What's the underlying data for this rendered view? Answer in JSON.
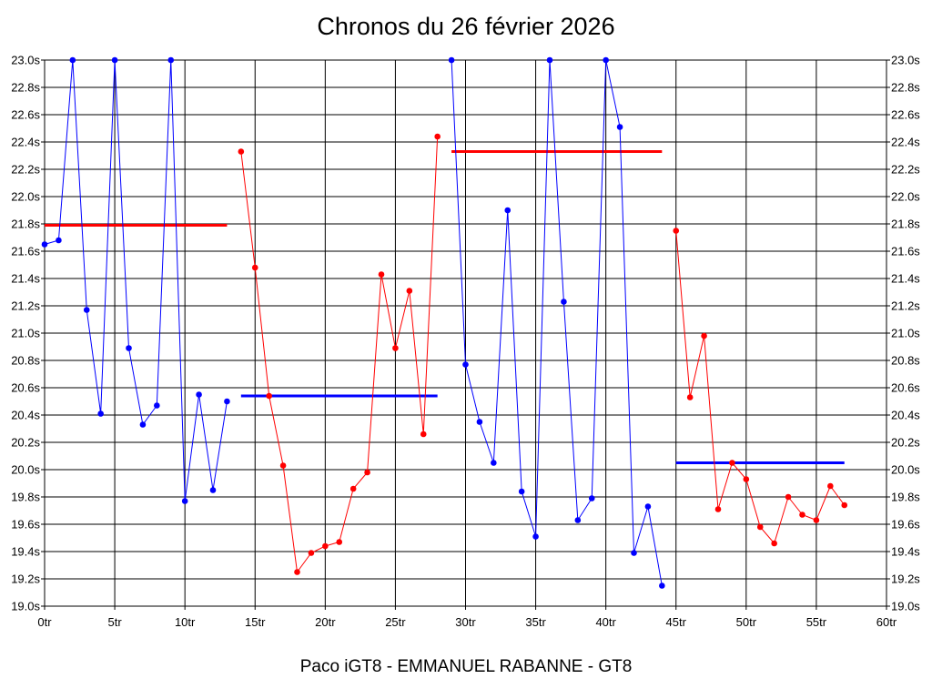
{
  "chart_data": {
    "type": "line",
    "title": "Chronos du 26 février 2026",
    "subtitle": "Paco iGT8 - EMMANUEL RABANNE - GT8",
    "xlim": [
      0,
      60
    ],
    "ylim": [
      19.0,
      23.0
    ],
    "x_ticks": [
      {
        "value": 0,
        "label": "0tr"
      },
      {
        "value": 5,
        "label": "5tr"
      },
      {
        "value": 10,
        "label": "10tr"
      },
      {
        "value": 15,
        "label": "15tr"
      },
      {
        "value": 20,
        "label": "20tr"
      },
      {
        "value": 25,
        "label": "25tr"
      },
      {
        "value": 30,
        "label": "30tr"
      },
      {
        "value": 35,
        "label": "35tr"
      },
      {
        "value": 40,
        "label": "40tr"
      },
      {
        "value": 45,
        "label": "45tr"
      },
      {
        "value": 50,
        "label": "50tr"
      },
      {
        "value": 55,
        "label": "55tr"
      },
      {
        "value": 60,
        "label": "60tr"
      }
    ],
    "y_ticks": [
      {
        "value": 19.0,
        "label": "19.0s"
      },
      {
        "value": 19.2,
        "label": "19.2s"
      },
      {
        "value": 19.4,
        "label": "19.4s"
      },
      {
        "value": 19.6,
        "label": "19.6s"
      },
      {
        "value": 19.8,
        "label": "19.8s"
      },
      {
        "value": 20.0,
        "label": "20.0s"
      },
      {
        "value": 20.2,
        "label": "20.2s"
      },
      {
        "value": 20.4,
        "label": "20.4s"
      },
      {
        "value": 20.6,
        "label": "20.6s"
      },
      {
        "value": 20.8,
        "label": "20.8s"
      },
      {
        "value": 21.0,
        "label": "21.0s"
      },
      {
        "value": 21.2,
        "label": "21.2s"
      },
      {
        "value": 21.4,
        "label": "21.4s"
      },
      {
        "value": 21.6,
        "label": "21.6s"
      },
      {
        "value": 21.8,
        "label": "21.8s"
      },
      {
        "value": 22.0,
        "label": "22.0s"
      },
      {
        "value": 22.2,
        "label": "22.2s"
      },
      {
        "value": 22.4,
        "label": "22.4s"
      },
      {
        "value": 22.6,
        "label": "22.6s"
      },
      {
        "value": 22.8,
        "label": "22.8s"
      },
      {
        "value": 23.0,
        "label": "23.0s"
      }
    ],
    "grid": true,
    "series": [
      {
        "color": "#0000ff",
        "points": [
          [
            0,
            21.65
          ],
          [
            1,
            21.68
          ],
          [
            2,
            23.0
          ],
          [
            3,
            21.17
          ],
          [
            4,
            20.41
          ],
          [
            5,
            23.0
          ],
          [
            6,
            20.89
          ],
          [
            7,
            20.33
          ],
          [
            8,
            20.47
          ],
          [
            9,
            23.0
          ],
          [
            10,
            19.77
          ],
          [
            11,
            20.55
          ],
          [
            12,
            19.85
          ],
          [
            13,
            20.5
          ]
        ]
      },
      {
        "color": "#ff0000",
        "points": [
          [
            14,
            22.33
          ],
          [
            15,
            21.48
          ],
          [
            16,
            20.54
          ],
          [
            17,
            20.03
          ],
          [
            18,
            19.25
          ],
          [
            19,
            19.39
          ],
          [
            20,
            19.44
          ],
          [
            21,
            19.47
          ],
          [
            22,
            19.86
          ],
          [
            23,
            19.98
          ],
          [
            24,
            21.43
          ],
          [
            25,
            20.89
          ],
          [
            26,
            21.31
          ],
          [
            27,
            20.26
          ],
          [
            28,
            22.44
          ]
        ]
      },
      {
        "color": "#0000ff",
        "points": [
          [
            29,
            23.0
          ],
          [
            30,
            20.77
          ],
          [
            31,
            20.35
          ],
          [
            32,
            20.05
          ],
          [
            33,
            21.9
          ],
          [
            34,
            19.84
          ],
          [
            35,
            19.51
          ],
          [
            36,
            23.0
          ],
          [
            37,
            21.23
          ],
          [
            38,
            19.63
          ],
          [
            39,
            19.79
          ],
          [
            40,
            23.0
          ],
          [
            41,
            22.51
          ],
          [
            42,
            19.39
          ],
          [
            43,
            19.73
          ],
          [
            44,
            19.15
          ]
        ]
      },
      {
        "color": "#ff0000",
        "points": [
          [
            45,
            21.75
          ],
          [
            46,
            20.53
          ],
          [
            47,
            20.98
          ],
          [
            48,
            19.71
          ],
          [
            49,
            20.05
          ],
          [
            50,
            19.93
          ],
          [
            51,
            19.58
          ],
          [
            52,
            19.46
          ],
          [
            53,
            19.8
          ],
          [
            54,
            19.67
          ],
          [
            55,
            19.63
          ],
          [
            56,
            19.88
          ],
          [
            57,
            19.74
          ]
        ]
      }
    ],
    "averages": [
      {
        "color": "#ff0000",
        "x": [
          0,
          13
        ],
        "y": 21.79
      },
      {
        "color": "#0000ff",
        "x": [
          14,
          28
        ],
        "y": 20.54
      },
      {
        "color": "#ff0000",
        "x": [
          29,
          44
        ],
        "y": 22.33
      },
      {
        "color": "#0000ff",
        "x": [
          45,
          57
        ],
        "y": 20.05
      }
    ]
  }
}
